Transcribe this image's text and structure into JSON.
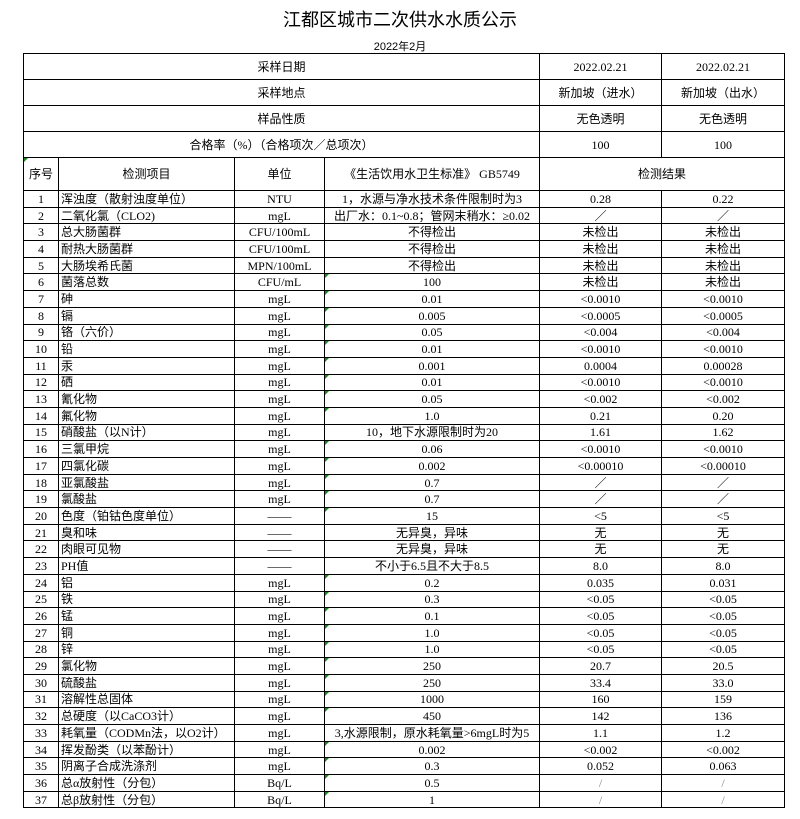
{
  "title": "江都区城市二次供水水质公示",
  "subtitle": "2022年2月",
  "meta": [
    {
      "label": "采样日期",
      "values": [
        "2022.02.21",
        "2022.02.21"
      ]
    },
    {
      "label": "采样地点",
      "values": [
        "新加坡（进水）",
        "新加坡（出水）"
      ]
    },
    {
      "label": "样品性质",
      "values": [
        "无色透明",
        "无色透明"
      ]
    },
    {
      "label": "合格率（%）（合格项次／总项次）",
      "values": [
        "100",
        "100"
      ]
    }
  ],
  "headers": {
    "seq": "序号",
    "item": "检测项目",
    "unit": "单位",
    "standard": "《生活饮用水卫生标准》 GB5749",
    "result": "检测结果"
  },
  "rows": [
    [
      "1",
      "浑浊度（散射浊度单位）",
      "NTU",
      "1，水源与净水技术条件限制时为3",
      "0.28",
      "0.22"
    ],
    [
      "2",
      "二氧化氯（CLO2)",
      "mgL",
      "出厂水：0.1~0.8；管网末稍水：≥0.02",
      "／",
      "／"
    ],
    [
      "3",
      "总大肠菌群",
      "CFU/100mL",
      "不得检出",
      "未检出",
      "未检出"
    ],
    [
      "4",
      "耐热大肠菌群",
      "CFU/100mL",
      "不得检出",
      "未检出",
      "未检出"
    ],
    [
      "5",
      "大肠埃希氏菌",
      "MPN/100mL",
      "不得检出",
      "未检出",
      "未检出"
    ],
    [
      "6",
      "菌落总数",
      "CFU/mL",
      "100",
      "未检出",
      "未检出"
    ],
    [
      "7",
      "砷",
      "mgL",
      "0.01",
      "<0.0010",
      "<0.0010"
    ],
    [
      "8",
      "镉",
      "mgL",
      "0.005",
      "<0.0005",
      "<0.0005"
    ],
    [
      "9",
      "铬（六价）",
      "mgL",
      "0.05",
      "<0.004",
      "<0.004"
    ],
    [
      "10",
      "铅",
      "mgL",
      "0.01",
      "<0.0010",
      "<0.0010"
    ],
    [
      "11",
      "汞",
      "mgL",
      "0.001",
      "0.0004",
      "0.00028"
    ],
    [
      "12",
      "硒",
      "mgL",
      "0.01",
      "<0.0010",
      "<0.0010"
    ],
    [
      "13",
      "氰化物",
      "mgL",
      "0.05",
      "<0.002",
      "<0.002"
    ],
    [
      "14",
      "氟化物",
      "mgL",
      "1.0",
      "0.21",
      "0.20"
    ],
    [
      "15",
      "硝酸盐（以N计）",
      "mgL",
      "10，地下水源限制时为20",
      "1.61",
      "1.62"
    ],
    [
      "16",
      "三氯甲烷",
      "mgL",
      "0.06",
      "<0.0010",
      "<0.0010"
    ],
    [
      "17",
      "四氯化碳",
      "mgL",
      "0.002",
      "<0.00010",
      "<0.00010"
    ],
    [
      "18",
      "亚氯酸盐",
      "mgL",
      "0.7",
      "／",
      "／"
    ],
    [
      "19",
      "氯酸盐",
      "mgL",
      "0.7",
      "／",
      "／"
    ],
    [
      "20",
      "色度（铂钴色度单位）",
      "——",
      "15",
      "<5",
      "<5"
    ],
    [
      "21",
      "臭和味",
      "——",
      "无异臭，异味",
      "无",
      "无"
    ],
    [
      "22",
      "肉眼可见物",
      "——",
      "无异臭，异味",
      "无",
      "无"
    ],
    [
      "23",
      "PH值",
      "——",
      "不小于6.5且不大于8.5",
      "8.0",
      "8.0"
    ],
    [
      "24",
      "铝",
      "mgL",
      "0.2",
      "0.035",
      "0.031"
    ],
    [
      "25",
      "铁",
      "mgL",
      "0.3",
      "<0.05",
      "<0.05"
    ],
    [
      "26",
      "锰",
      "mgL",
      "0.1",
      "<0.05",
      "<0.05"
    ],
    [
      "27",
      "铜",
      "mgL",
      "1.0",
      "<0.05",
      "<0.05"
    ],
    [
      "28",
      "锌",
      "mgL",
      "1.0",
      "<0.05",
      "<0.05"
    ],
    [
      "29",
      "氯化物",
      "mgL",
      "250",
      "20.7",
      "20.5"
    ],
    [
      "30",
      "硫酸盐",
      "mgL",
      "250",
      "33.4",
      "33.0"
    ],
    [
      "31",
      "溶解性总固体",
      "mgL",
      "1000",
      "160",
      "159"
    ],
    [
      "32",
      "总硬度（以CaCO3计）",
      "mgL",
      "450",
      "142",
      "136"
    ],
    [
      "33",
      "耗氧量（CODMn法，以O2计）",
      "mgL",
      "3,水源限制，原水耗氧量>6mgL时为5",
      "1.1",
      "1.2"
    ],
    [
      "34",
      "挥发酚类（以苯酚计）",
      "mgL",
      "0.002",
      "<0.002",
      "<0.002"
    ],
    [
      "35",
      "阴离子合成洗涤剂",
      "mgL",
      "0.3",
      "0.052",
      "0.063"
    ],
    [
      "36",
      "总α放射性（分包）",
      "Bq/L",
      "0.5",
      "/",
      "/"
    ],
    [
      "37",
      "总β放射性（分包）",
      "Bq/L",
      "1",
      "/",
      "/"
    ]
  ]
}
